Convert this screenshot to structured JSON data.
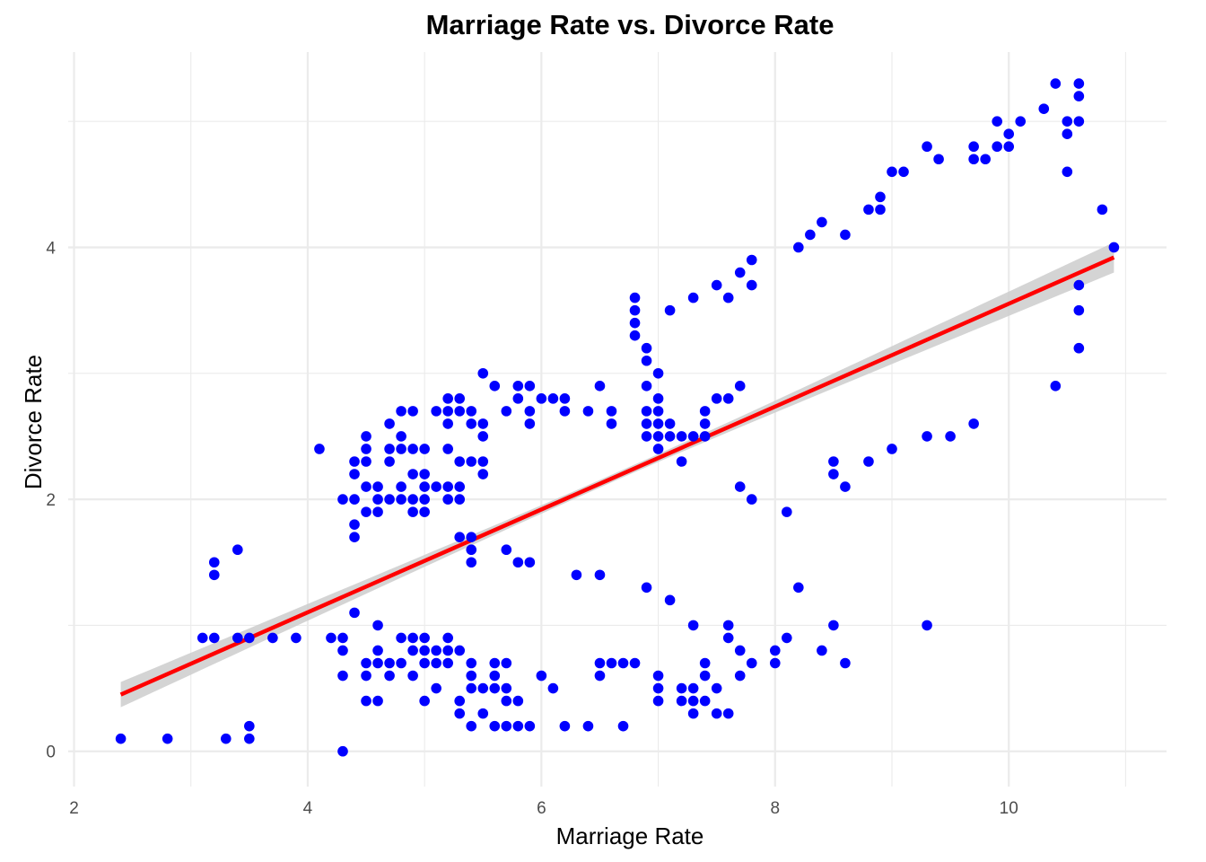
{
  "chart_data": {
    "type": "scatter",
    "title": "Marriage Rate vs. Divorce Rate",
    "xlabel": "Marriage Rate",
    "ylabel": "Divorce Rate",
    "xlim": [
      1.95,
      11.35
    ],
    "ylim": [
      -0.28,
      5.55
    ],
    "x_ticks": [
      2,
      4,
      6,
      8,
      10
    ],
    "y_ticks": [
      0,
      2,
      4
    ],
    "x_tick_labels": [
      "2",
      "4",
      "6",
      "8",
      "10"
    ],
    "y_tick_labels": [
      "0",
      "2",
      "4"
    ],
    "grid": true,
    "colors": {
      "points": "#0000ff",
      "fit_line": "#ff0000",
      "ribbon": "#cccccc",
      "grid": "#ebebeb"
    },
    "fit": {
      "method": "linear",
      "x_range": [
        2.4,
        10.9
      ],
      "y_start": 0.45,
      "y_end": 3.92,
      "ci_halfwidth_start": 0.1,
      "ci_halfwidth_mid": 0.03,
      "ci_halfwidth_end": 0.12
    },
    "points": [
      [
        2.4,
        0.1
      ],
      [
        2.8,
        0.1
      ],
      [
        3.3,
        0.1
      ],
      [
        3.5,
        0.1
      ],
      [
        3.5,
        0.2
      ],
      [
        3.1,
        0.9
      ],
      [
        3.2,
        0.9
      ],
      [
        3.4,
        0.9
      ],
      [
        3.5,
        0.9
      ],
      [
        3.7,
        0.9
      ],
      [
        3.9,
        0.9
      ],
      [
        3.2,
        1.5
      ],
      [
        3.2,
        1.4
      ],
      [
        3.4,
        1.6
      ],
      [
        4.1,
        2.4
      ],
      [
        4.3,
        2.0
      ],
      [
        4.4,
        2.0
      ],
      [
        4.4,
        1.8
      ],
      [
        4.4,
        1.7
      ],
      [
        4.4,
        2.2
      ],
      [
        4.4,
        2.3
      ],
      [
        4.5,
        2.5
      ],
      [
        4.5,
        2.4
      ],
      [
        4.5,
        2.3
      ],
      [
        4.5,
        2.1
      ],
      [
        4.5,
        1.9
      ],
      [
        4.6,
        2.1
      ],
      [
        4.6,
        2.0
      ],
      [
        4.6,
        1.9
      ],
      [
        4.7,
        2.6
      ],
      [
        4.7,
        2.4
      ],
      [
        4.7,
        2.3
      ],
      [
        4.7,
        2.0
      ],
      [
        4.8,
        2.7
      ],
      [
        4.8,
        2.5
      ],
      [
        4.8,
        2.4
      ],
      [
        4.8,
        2.1
      ],
      [
        4.8,
        2.0
      ],
      [
        4.9,
        2.7
      ],
      [
        4.9,
        2.4
      ],
      [
        4.9,
        2.2
      ],
      [
        4.9,
        2.0
      ],
      [
        4.9,
        1.9
      ],
      [
        5.0,
        2.4
      ],
      [
        5.0,
        2.2
      ],
      [
        5.0,
        2.1
      ],
      [
        5.0,
        2.0
      ],
      [
        5.0,
        1.9
      ],
      [
        5.1,
        2.7
      ],
      [
        5.1,
        2.1
      ],
      [
        5.2,
        2.8
      ],
      [
        5.2,
        2.7
      ],
      [
        5.2,
        2.6
      ],
      [
        5.2,
        2.4
      ],
      [
        5.2,
        2.1
      ],
      [
        5.2,
        2.0
      ],
      [
        5.3,
        2.8
      ],
      [
        5.3,
        2.7
      ],
      [
        5.3,
        2.3
      ],
      [
        5.3,
        2.1
      ],
      [
        5.3,
        2.0
      ],
      [
        5.3,
        1.7
      ],
      [
        5.4,
        2.7
      ],
      [
        5.4,
        2.6
      ],
      [
        5.4,
        2.3
      ],
      [
        5.4,
        1.7
      ],
      [
        5.4,
        1.6
      ],
      [
        5.4,
        1.5
      ],
      [
        5.5,
        3.0
      ],
      [
        5.5,
        2.6
      ],
      [
        5.5,
        2.5
      ],
      [
        5.5,
        2.3
      ],
      [
        5.5,
        2.2
      ],
      [
        5.6,
        2.9
      ],
      [
        5.7,
        2.7
      ],
      [
        5.7,
        1.6
      ],
      [
        5.8,
        2.9
      ],
      [
        5.8,
        2.8
      ],
      [
        5.8,
        1.5
      ],
      [
        5.9,
        2.9
      ],
      [
        5.9,
        2.7
      ],
      [
        5.9,
        2.6
      ],
      [
        5.9,
        1.5
      ],
      [
        6.0,
        2.8
      ],
      [
        6.1,
        2.8
      ],
      [
        6.2,
        2.8
      ],
      [
        6.2,
        2.7
      ],
      [
        6.3,
        1.4
      ],
      [
        6.4,
        2.7
      ],
      [
        6.5,
        2.9
      ],
      [
        6.5,
        1.4
      ],
      [
        6.6,
        2.7
      ],
      [
        6.6,
        2.6
      ],
      [
        6.8,
        3.6
      ],
      [
        6.8,
        3.5
      ],
      [
        6.8,
        3.4
      ],
      [
        6.8,
        3.3
      ],
      [
        6.9,
        3.2
      ],
      [
        6.9,
        3.1
      ],
      [
        6.9,
        2.9
      ],
      [
        6.9,
        2.7
      ],
      [
        6.9,
        2.6
      ],
      [
        6.9,
        2.5
      ],
      [
        6.9,
        1.3
      ],
      [
        7.0,
        3.0
      ],
      [
        7.0,
        2.8
      ],
      [
        7.0,
        2.7
      ],
      [
        7.0,
        2.6
      ],
      [
        7.0,
        2.5
      ],
      [
        7.0,
        2.4
      ],
      [
        7.1,
        3.5
      ],
      [
        7.1,
        2.6
      ],
      [
        7.1,
        2.5
      ],
      [
        7.1,
        1.2
      ],
      [
        7.2,
        2.5
      ],
      [
        7.2,
        2.3
      ],
      [
        7.3,
        3.6
      ],
      [
        7.3,
        2.5
      ],
      [
        7.4,
        2.7
      ],
      [
        7.4,
        2.6
      ],
      [
        7.4,
        2.5
      ],
      [
        7.5,
        3.7
      ],
      [
        7.5,
        2.8
      ],
      [
        7.6,
        3.6
      ],
      [
        7.6,
        2.8
      ],
      [
        7.7,
        3.8
      ],
      [
        7.7,
        2.9
      ],
      [
        7.7,
        2.1
      ],
      [
        7.8,
        3.9
      ],
      [
        7.8,
        3.7
      ],
      [
        7.8,
        2.0
      ],
      [
        8.1,
        1.9
      ],
      [
        8.2,
        4.0
      ],
      [
        8.2,
        1.3
      ],
      [
        8.3,
        4.1
      ],
      [
        8.4,
        4.2
      ],
      [
        8.5,
        2.3
      ],
      [
        8.5,
        2.2
      ],
      [
        8.6,
        4.1
      ],
      [
        8.6,
        2.1
      ],
      [
        8.8,
        4.3
      ],
      [
        8.8,
        2.3
      ],
      [
        8.9,
        4.4
      ],
      [
        8.9,
        4.3
      ],
      [
        9.0,
        4.6
      ],
      [
        9.0,
        2.4
      ],
      [
        9.1,
        4.6
      ],
      [
        9.3,
        4.8
      ],
      [
        9.3,
        2.5
      ],
      [
        9.3,
        1.0
      ],
      [
        9.4,
        4.7
      ],
      [
        9.5,
        2.5
      ],
      [
        9.7,
        4.8
      ],
      [
        9.7,
        4.7
      ],
      [
        9.7,
        2.6
      ],
      [
        9.8,
        4.7
      ],
      [
        9.9,
        5.0
      ],
      [
        9.9,
        4.8
      ],
      [
        10.0,
        4.9
      ],
      [
        10.0,
        4.8
      ],
      [
        10.1,
        5.0
      ],
      [
        10.3,
        5.1
      ],
      [
        10.4,
        5.3
      ],
      [
        10.4,
        2.9
      ],
      [
        10.5,
        5.0
      ],
      [
        10.5,
        4.9
      ],
      [
        10.5,
        4.6
      ],
      [
        10.6,
        5.3
      ],
      [
        10.6,
        5.2
      ],
      [
        10.6,
        5.0
      ],
      [
        10.6,
        3.7
      ],
      [
        10.6,
        3.5
      ],
      [
        10.6,
        3.2
      ],
      [
        10.8,
        4.3
      ],
      [
        10.9,
        4.0
      ],
      [
        4.2,
        0.9
      ],
      [
        4.3,
        0.9
      ],
      [
        4.3,
        0.8
      ],
      [
        4.3,
        0.6
      ],
      [
        4.3,
        0.0
      ],
      [
        4.4,
        1.1
      ],
      [
        4.5,
        0.7
      ],
      [
        4.5,
        0.6
      ],
      [
        4.5,
        0.4
      ],
      [
        4.6,
        1.0
      ],
      [
        4.6,
        0.8
      ],
      [
        4.6,
        0.7
      ],
      [
        4.6,
        0.4
      ],
      [
        4.7,
        0.7
      ],
      [
        4.7,
        0.6
      ],
      [
        4.8,
        0.9
      ],
      [
        4.8,
        0.7
      ],
      [
        4.9,
        0.9
      ],
      [
        4.9,
        0.8
      ],
      [
        4.9,
        0.6
      ],
      [
        5.0,
        0.9
      ],
      [
        5.0,
        0.8
      ],
      [
        5.0,
        0.7
      ],
      [
        5.0,
        0.4
      ],
      [
        5.1,
        0.8
      ],
      [
        5.1,
        0.7
      ],
      [
        5.1,
        0.5
      ],
      [
        5.2,
        0.9
      ],
      [
        5.2,
        0.8
      ],
      [
        5.2,
        0.7
      ],
      [
        5.3,
        0.8
      ],
      [
        5.3,
        0.4
      ],
      [
        5.3,
        0.3
      ],
      [
        5.4,
        0.7
      ],
      [
        5.4,
        0.6
      ],
      [
        5.4,
        0.5
      ],
      [
        5.4,
        0.2
      ],
      [
        5.5,
        0.5
      ],
      [
        5.5,
        0.3
      ],
      [
        5.6,
        0.7
      ],
      [
        5.6,
        0.6
      ],
      [
        5.6,
        0.5
      ],
      [
        5.6,
        0.2
      ],
      [
        5.7,
        0.7
      ],
      [
        5.7,
        0.5
      ],
      [
        5.7,
        0.4
      ],
      [
        5.7,
        0.2
      ],
      [
        5.8,
        0.4
      ],
      [
        5.8,
        0.2
      ],
      [
        5.9,
        0.2
      ],
      [
        6.0,
        0.6
      ],
      [
        6.1,
        0.5
      ],
      [
        6.2,
        0.2
      ],
      [
        6.4,
        0.2
      ],
      [
        6.5,
        0.7
      ],
      [
        6.5,
        0.6
      ],
      [
        6.6,
        0.7
      ],
      [
        6.7,
        0.7
      ],
      [
        6.7,
        0.2
      ],
      [
        6.8,
        0.7
      ],
      [
        7.0,
        0.6
      ],
      [
        7.0,
        0.5
      ],
      [
        7.0,
        0.4
      ],
      [
        7.2,
        0.5
      ],
      [
        7.2,
        0.4
      ],
      [
        7.3,
        0.5
      ],
      [
        7.3,
        0.4
      ],
      [
        7.3,
        0.3
      ],
      [
        7.3,
        1.0
      ],
      [
        7.4,
        0.7
      ],
      [
        7.4,
        0.6
      ],
      [
        7.4,
        0.4
      ],
      [
        7.5,
        0.5
      ],
      [
        7.5,
        0.3
      ],
      [
        7.6,
        1.0
      ],
      [
        7.6,
        0.9
      ],
      [
        7.6,
        0.3
      ],
      [
        7.7,
        0.8
      ],
      [
        7.7,
        0.6
      ],
      [
        7.8,
        0.7
      ],
      [
        8.0,
        0.8
      ],
      [
        8.0,
        0.7
      ],
      [
        8.1,
        0.9
      ],
      [
        8.4,
        0.8
      ],
      [
        8.5,
        1.0
      ],
      [
        8.6,
        0.7
      ]
    ]
  }
}
